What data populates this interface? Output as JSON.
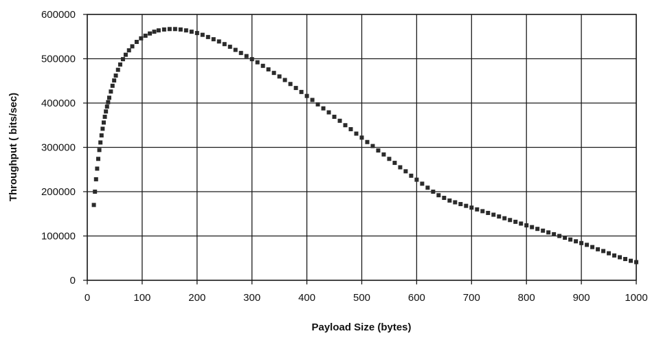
{
  "chart_data": {
    "type": "scatter",
    "title": "",
    "xlabel": "Payload Size (bytes)",
    "ylabel": "Throughput ( bits/sec)",
    "xlim": [
      0,
      1000
    ],
    "ylim": [
      0,
      600000
    ],
    "x_ticks": [
      "0",
      "100",
      "200",
      "300",
      "400",
      "500",
      "600",
      "700",
      "800",
      "900",
      "1000"
    ],
    "y_ticks": [
      "0",
      "100000",
      "200000",
      "300000",
      "400000",
      "500000",
      "600000"
    ],
    "grid": true,
    "legend": "none",
    "marker": "square",
    "marker_color": "#2b2b2b",
    "series": [
      {
        "x": [
          12,
          14,
          16,
          18,
          20,
          22,
          24,
          26,
          28,
          30,
          32,
          34,
          36,
          38,
          40,
          43,
          46,
          49,
          52,
          56,
          60,
          65,
          70,
          76,
          82,
          90,
          98,
          106,
          114,
          122,
          130,
          140,
          150,
          160,
          170,
          180,
          190,
          200,
          210,
          220,
          230,
          240,
          250,
          260,
          270,
          280,
          290,
          300,
          310,
          320,
          330,
          340,
          350,
          360,
          370,
          380,
          390,
          400,
          410,
          420,
          430,
          440,
          450,
          460,
          470,
          480,
          490,
          500,
          510,
          520,
          530,
          540,
          550,
          560,
          570,
          580,
          590,
          600,
          610,
          620,
          630,
          640,
          650,
          660,
          670,
          680,
          690,
          700,
          710,
          720,
          730,
          740,
          750,
          760,
          770,
          780,
          790,
          800,
          810,
          820,
          830,
          840,
          850,
          860,
          870,
          880,
          890,
          900,
          910,
          920,
          930,
          940,
          950,
          960,
          970,
          980,
          990,
          1000
        ],
        "y": [
          170000,
          200000,
          228000,
          252000,
          274000,
          294000,
          311000,
          327000,
          342000,
          356000,
          369000,
          381000,
          392000,
          402000,
          412000,
          426000,
          439000,
          451000,
          462000,
          475000,
          487000,
          499000,
          509000,
          519000,
          528000,
          538000,
          546000,
          552000,
          557000,
          561000,
          564000,
          566000,
          567000,
          567000,
          566000,
          564000,
          561000,
          558000,
          554000,
          549000,
          544000,
          539000,
          533000,
          527000,
          520000,
          513000,
          506000,
          499000,
          492000,
          484000,
          476000,
          468000,
          460000,
          452000,
          443000,
          434000,
          425000,
          416000,
          407000,
          397000,
          388000,
          379000,
          369000,
          360000,
          350000,
          341000,
          331000,
          322000,
          312000,
          303000,
          293000,
          284000,
          274000,
          265000,
          255000,
          246000,
          236000,
          227000,
          218000,
          209000,
          200000,
          192000,
          186000,
          180000,
          176000,
          172000,
          168000,
          164000,
          160000,
          156000,
          152000,
          148000,
          144000,
          140000,
          136000,
          132000,
          128000,
          124000,
          120000,
          116000,
          112000,
          108000,
          104000,
          100000,
          96000,
          92000,
          88000,
          84000,
          80000,
          75000,
          70000,
          66000,
          61000,
          56000,
          52000,
          48000,
          44000,
          41000
        ]
      }
    ]
  }
}
